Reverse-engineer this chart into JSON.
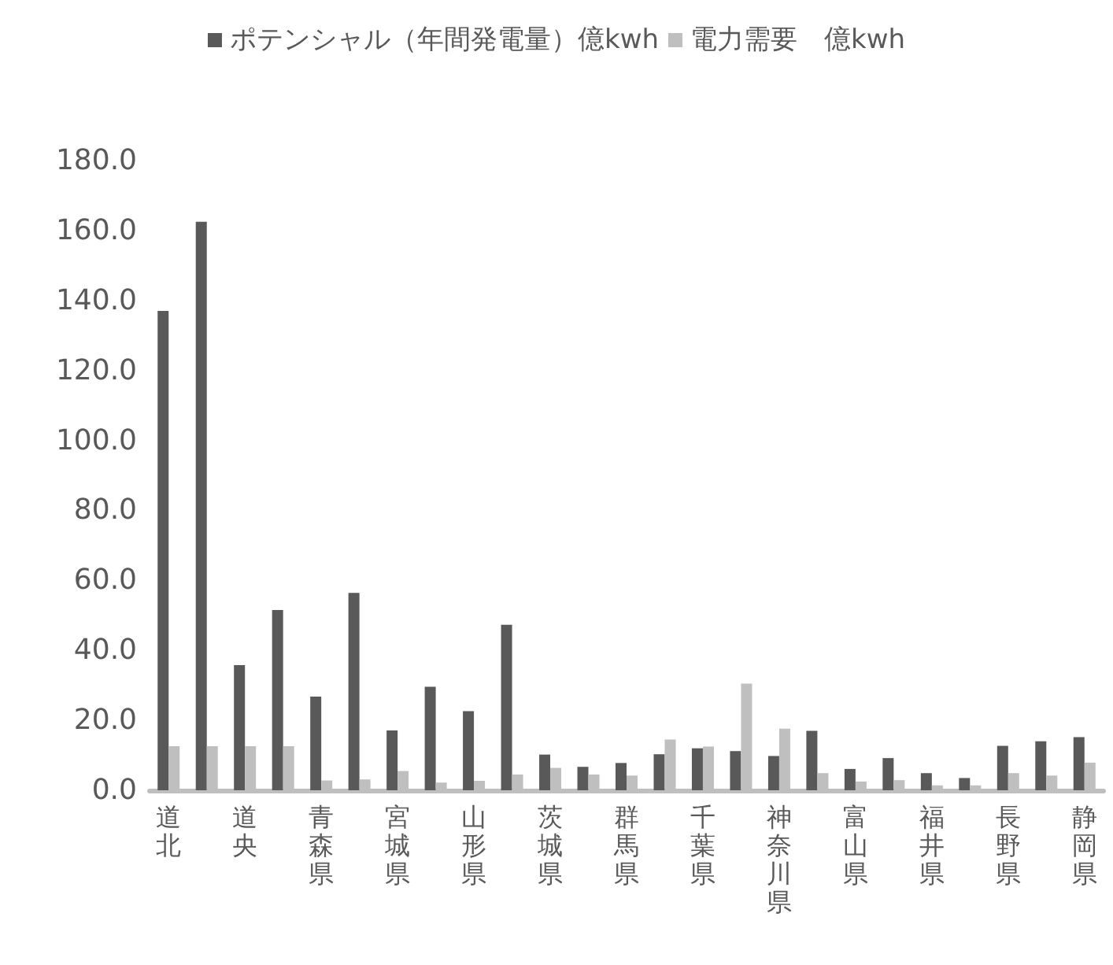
{
  "chart_data": {
    "type": "bar",
    "categories": [
      "道北",
      null,
      "道央",
      null,
      "青森県",
      null,
      "宮城県",
      null,
      "山形県",
      null,
      "茨城県",
      null,
      "群馬県",
      null,
      "千葉県",
      null,
      "神奈川県",
      null,
      "富山県",
      null,
      "福井県",
      null,
      "長野県",
      null,
      "静岡県"
    ],
    "series": [
      {
        "name": "ポテンシャル（年間発電量）億kwh",
        "color": "#595959",
        "values": [
          137,
          162.5,
          35.8,
          51.5,
          26.8,
          56.4,
          17.1,
          29.6,
          22.6,
          47.3,
          10.2,
          6.7,
          7.8,
          10.3,
          12.0,
          11.2,
          9.8,
          17.0,
          6.1,
          9.2,
          4.9,
          3.5,
          12.7,
          14.0,
          15.2
        ]
      },
      {
        "name": "電力需要　億kwh",
        "color": "#bfbfbf",
        "values": [
          12.6,
          12.6,
          12.6,
          12.6,
          2.8,
          3.1,
          5.5,
          2.2,
          2.7,
          4.5,
          6.4,
          4.5,
          4.2,
          14.5,
          12.5,
          30.5,
          17.6,
          4.9,
          2.5,
          2.9,
          1.4,
          1.4,
          4.9,
          4.2,
          7.9
        ]
      }
    ],
    "ylim": [
      0,
      180
    ],
    "yticks": [
      {
        "value": 0,
        "label": "0.0"
      },
      {
        "value": 20,
        "label": "20.0"
      },
      {
        "value": 40,
        "label": "40.0"
      },
      {
        "value": 60,
        "label": "60.0"
      },
      {
        "value": 80,
        "label": "80.0"
      },
      {
        "value": 100,
        "label": "100.0"
      },
      {
        "value": 120,
        "label": "120.0"
      },
      {
        "value": 140,
        "label": "140.0"
      },
      {
        "value": 160,
        "label": "160.0"
      },
      {
        "value": 180,
        "label": "180.0"
      }
    ],
    "grid": false,
    "legend": "top"
  }
}
